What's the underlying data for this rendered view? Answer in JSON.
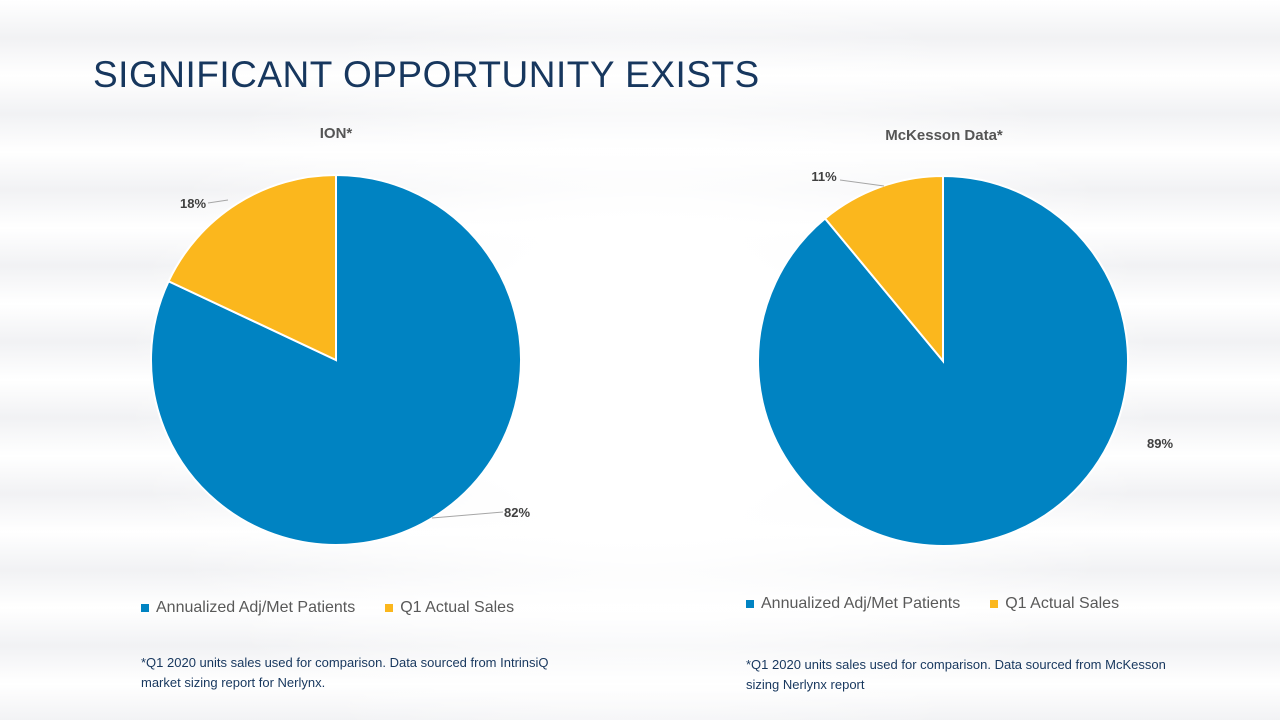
{
  "slide": {
    "title": "SIGNIFICANT OPPORTUNITY EXISTS"
  },
  "colors": {
    "annualized": "#0083c2",
    "q1": "#fbb71d",
    "title": "#17375e"
  },
  "chart_data": [
    {
      "type": "pie",
      "title": "ION*",
      "categories": [
        "Annualized Adj/Met Patients",
        "Q1 Actual Sales"
      ],
      "values": [
        82,
        18
      ],
      "data_labels": [
        "82%",
        "18%"
      ],
      "legend_position": "bottom",
      "footnote": "*Q1 2020 units sales used for comparison. Data sourced from IntrinsiQ market sizing report for Nerlynx."
    },
    {
      "type": "pie",
      "title": "McKesson Data*",
      "categories": [
        "Annualized Adj/Met Patients",
        "Q1 Actual Sales"
      ],
      "values": [
        89,
        11
      ],
      "data_labels": [
        "89%",
        "11%"
      ],
      "legend_position": "bottom",
      "footnote": "*Q1 2020 units sales used for comparison. Data sourced from McKesson sizing Nerlynx report"
    }
  ]
}
